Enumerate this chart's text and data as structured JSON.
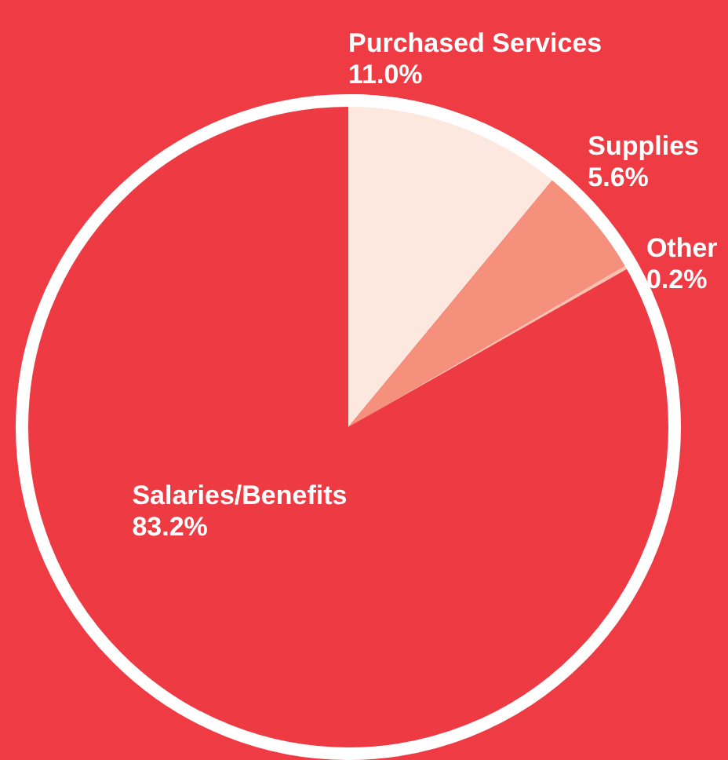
{
  "chart_data": {
    "type": "pie",
    "categories": [
      "Purchased Services",
      "Supplies",
      "Other",
      "Salaries/Benefits"
    ],
    "values": [
      11.0,
      5.6,
      0.2,
      83.2
    ],
    "colors": [
      "#fde8df",
      "#f4907c",
      "#f9c0b0",
      "#ee3a43"
    ],
    "value_labels": [
      "11.0%",
      "5.6%",
      "0.2%",
      "83.2%"
    ],
    "legend": false
  }
}
